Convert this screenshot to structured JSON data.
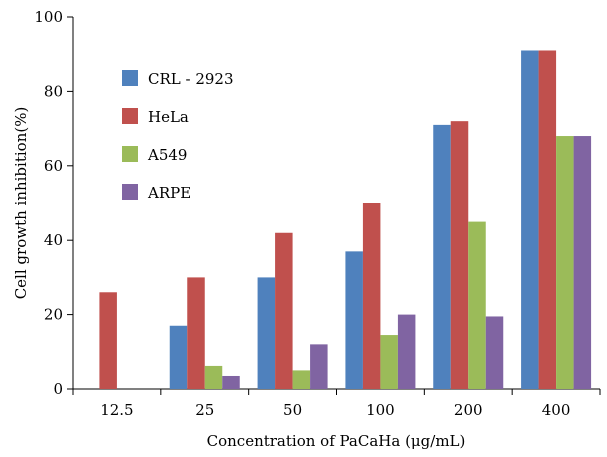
{
  "chart_data": {
    "type": "bar",
    "title": "",
    "xlabel": "Concentration of PaCaHa (μg/mL)",
    "ylabel": "Cell growth inhibition(%)",
    "ylim": [
      0,
      100
    ],
    "yticks": [
      "0",
      "20",
      "40",
      "60",
      "80",
      "100"
    ],
    "categories": [
      "12.5",
      "25",
      "50",
      "100",
      "200",
      "400"
    ],
    "grid": false,
    "legend_position": "top-left",
    "series": [
      {
        "name": "CRL - 2923",
        "color": "#4f81bd",
        "values": [
          0,
          17,
          30,
          37,
          71,
          91
        ]
      },
      {
        "name": "HeLa",
        "color": "#c0504d",
        "values": [
          26,
          30,
          42,
          50,
          72,
          91
        ]
      },
      {
        "name": "A549",
        "color": "#9bbb59",
        "values": [
          0,
          6.2,
          5,
          14.5,
          45,
          68
        ]
      },
      {
        "name": "ARPE",
        "color": "#8064a2",
        "values": [
          0,
          3.5,
          12,
          20,
          19.5,
          68
        ]
      }
    ]
  }
}
